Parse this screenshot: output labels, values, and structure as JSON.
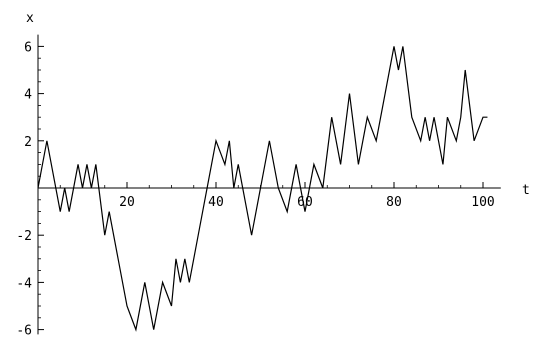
{
  "chart_data": {
    "type": "line",
    "xlabel": "t",
    "ylabel": "x",
    "xlim": [
      0,
      104
    ],
    "ylim": [
      -6.2,
      6.5
    ],
    "x_ticks": [
      20,
      40,
      60,
      80,
      100
    ],
    "y_ticks": [
      -6,
      -4,
      -2,
      2,
      4,
      6
    ],
    "grid": false,
    "series": [
      {
        "x": [
          0,
          2,
          4,
          5,
          6,
          7,
          8,
          9,
          10,
          11,
          12,
          13,
          15,
          16,
          18,
          20,
          22,
          24,
          26,
          28,
          30,
          31,
          32,
          33,
          34,
          36,
          38,
          40,
          42,
          43,
          44,
          45,
          46,
          48,
          50,
          52,
          54,
          56,
          57,
          58,
          59,
          60,
          62,
          64,
          66,
          68,
          70,
          72,
          74,
          76,
          78,
          80,
          81,
          82,
          84,
          86,
          87,
          88,
          89,
          90,
          91,
          92,
          94,
          95,
          96,
          98,
          100,
          101
        ],
        "y": [
          0,
          2,
          0,
          -1,
          0,
          -1,
          0,
          1,
          0,
          1,
          0,
          1,
          -2,
          -1,
          -3,
          -5,
          -6,
          -4,
          -6,
          -4,
          -5,
          -3,
          -4,
          -3,
          -4,
          -2,
          0,
          2,
          1,
          2,
          0,
          1,
          0,
          -2,
          0,
          2,
          0,
          -1,
          0,
          1,
          0,
          -1,
          1,
          0,
          3,
          1,
          4,
          1,
          3,
          2,
          4,
          6,
          5,
          6,
          3,
          2,
          3,
          2,
          3,
          2,
          1,
          3,
          2,
          3,
          5,
          2,
          3,
          3
        ]
      }
    ]
  }
}
